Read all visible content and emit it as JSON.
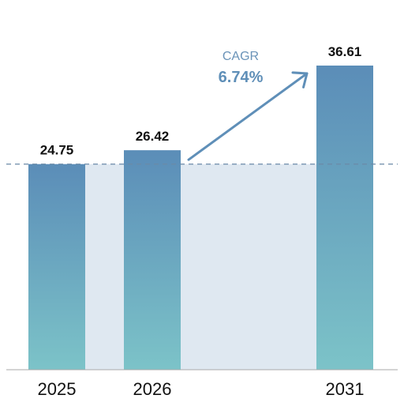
{
  "chart_data": {
    "type": "bar",
    "categories": [
      "2025",
      "2026",
      "2031"
    ],
    "values": [
      24.75,
      26.42,
      36.61
    ],
    "value_labels": [
      "24.75",
      "26.42",
      "36.61"
    ],
    "annotation": {
      "title": "CAGR",
      "value": "6.74%"
    },
    "reference_line_value": 24.75,
    "ylim": [
      0,
      36.61
    ],
    "grid": false,
    "legend": "none",
    "colors": {
      "bar_top": "#5b8db8",
      "bar_bottom": "#7cc3c8",
      "shaded_band": "#dfe8f1",
      "reference_line": "#6b8aa8",
      "arrow": "#5f8fb8",
      "baseline": "#aaaaaa"
    }
  }
}
